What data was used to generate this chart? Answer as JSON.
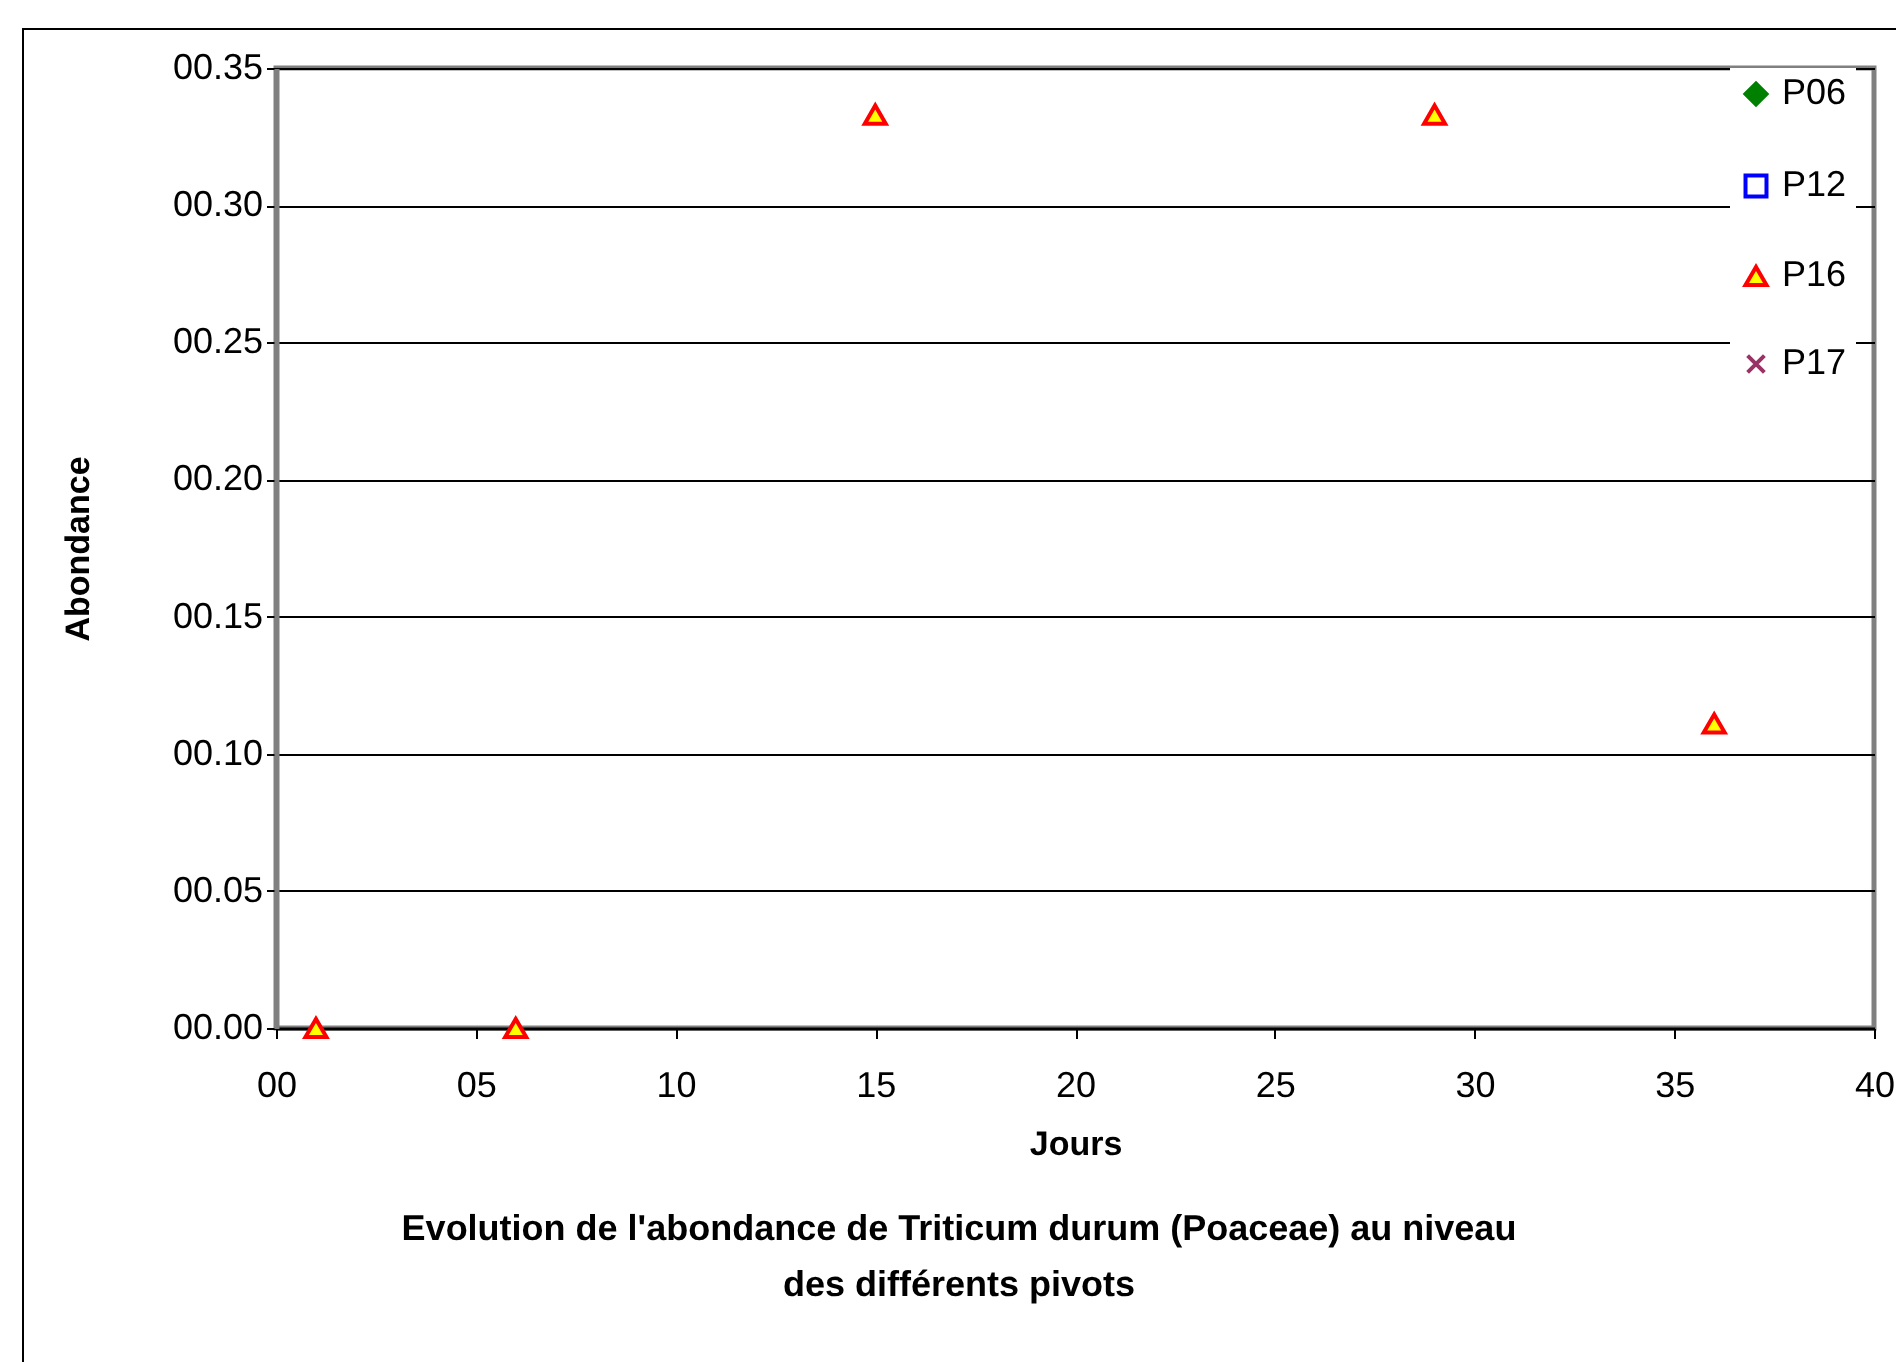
{
  "chart_data": {
    "type": "scatter",
    "title": "Evolution de l'abondance  de Triticum durum (Poaceae) au niveau\ndes différents pivots",
    "xlabel": "Jours",
    "ylabel": "Abondance",
    "x": [
      1,
      6,
      15,
      29,
      36
    ],
    "series": [
      {
        "name": "P06",
        "color": "#008000",
        "marker": "diamond",
        "values": [
          null,
          null,
          null,
          null,
          null
        ]
      },
      {
        "name": "P12",
        "color": "#0000ff",
        "marker": "square",
        "values": [
          null,
          null,
          null,
          null,
          null
        ]
      },
      {
        "name": "P16",
        "color": "#ff0000",
        "marker": "triangle",
        "values": [
          0,
          0,
          0.333,
          0.333,
          0.111
        ]
      },
      {
        "name": "P17",
        "color": "#993366",
        "marker": "cross",
        "values": [
          null,
          null,
          null,
          null,
          null
        ]
      }
    ],
    "xlim": [
      0,
      40
    ],
    "xticks": [
      {
        "value": 0,
        "label": "00"
      },
      {
        "value": 5,
        "label": "05"
      },
      10,
      15,
      20,
      25,
      30,
      35,
      40
    ],
    "ylim": [
      0,
      0.35
    ],
    "yticks": [
      {
        "value": 0,
        "label": "00.00"
      },
      {
        "value": 0.05,
        "label": "00.05"
      },
      {
        "value": 0.1,
        "label": "00.10"
      },
      {
        "value": 0.15,
        "label": "00.15"
      },
      {
        "value": 0.2,
        "label": "00.20"
      },
      {
        "value": 0.25,
        "label": "00.25"
      },
      {
        "value": 0.3,
        "label": "00.30"
      },
      {
        "value": 0.35,
        "label": "00.35"
      }
    ],
    "grid": "y",
    "legend": "top right"
  }
}
